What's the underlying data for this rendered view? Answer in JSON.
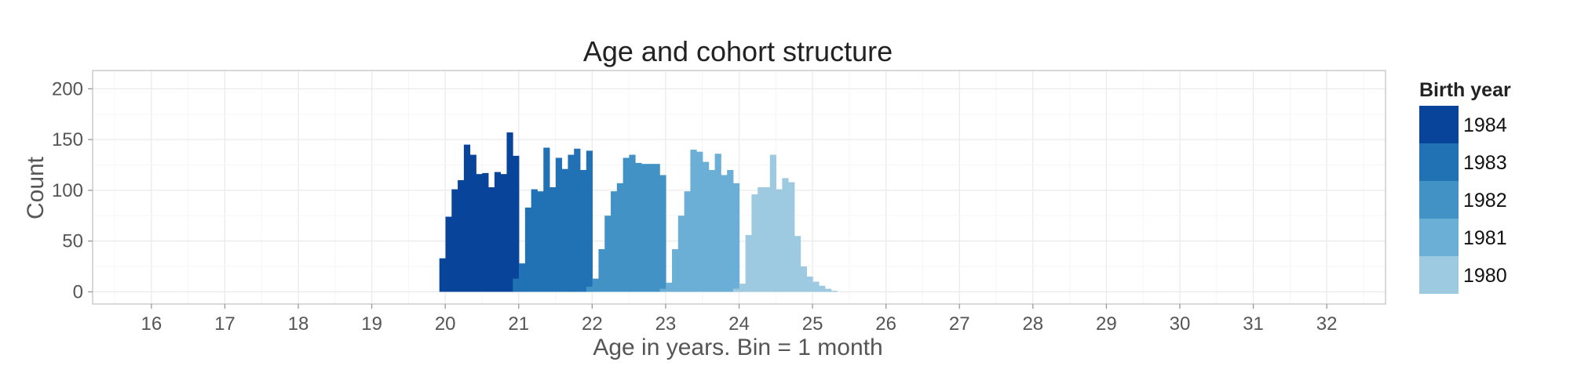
{
  "chart_data": {
    "type": "bar",
    "title": "Age and cohort structure",
    "xlabel": "Age in years. Bin = 1 month",
    "ylabel": "Count",
    "xlim": [
      15.2,
      32.8
    ],
    "ylim": [
      -12,
      218
    ],
    "x_ticks": [
      16,
      17,
      18,
      19,
      20,
      21,
      22,
      23,
      24,
      25,
      26,
      27,
      28,
      29,
      30,
      31,
      32
    ],
    "y_ticks": [
      0,
      50,
      100,
      150,
      200
    ],
    "grid": true,
    "bin_width_years": 0.0833,
    "legend": {
      "title": "Birth year",
      "position": "right"
    },
    "series": [
      {
        "name": "1984",
        "color": "#08459a",
        "x_start": 19.92,
        "values": [
          33,
          74,
          101,
          110,
          145,
          135,
          116,
          117,
          103,
          118,
          116,
          157,
          134
        ]
      },
      {
        "name": "1983",
        "color": "#2171b5",
        "x_start": 20.92,
        "values": [
          13,
          28,
          83,
          101,
          99,
          142,
          103,
          132,
          121,
          135,
          141,
          120,
          139
        ]
      },
      {
        "name": "1982",
        "color": "#4292c6",
        "x_start": 21.92,
        "values": [
          5,
          13,
          42,
          75,
          99,
          107,
          132,
          135,
          127,
          126,
          126,
          126,
          115
        ]
      },
      {
        "name": "1981",
        "color": "#6baed6",
        "x_start": 22.92,
        "values": [
          3,
          9,
          42,
          75,
          99,
          140,
          138,
          128,
          120,
          136,
          115,
          120,
          107
        ]
      },
      {
        "name": "1980",
        "color": "#9ecae1",
        "x_start": 23.92,
        "values": [
          3,
          8,
          56,
          96,
          103,
          103,
          135,
          101,
          112,
          108,
          55,
          25,
          15,
          10,
          6,
          3,
          1
        ]
      }
    ]
  }
}
